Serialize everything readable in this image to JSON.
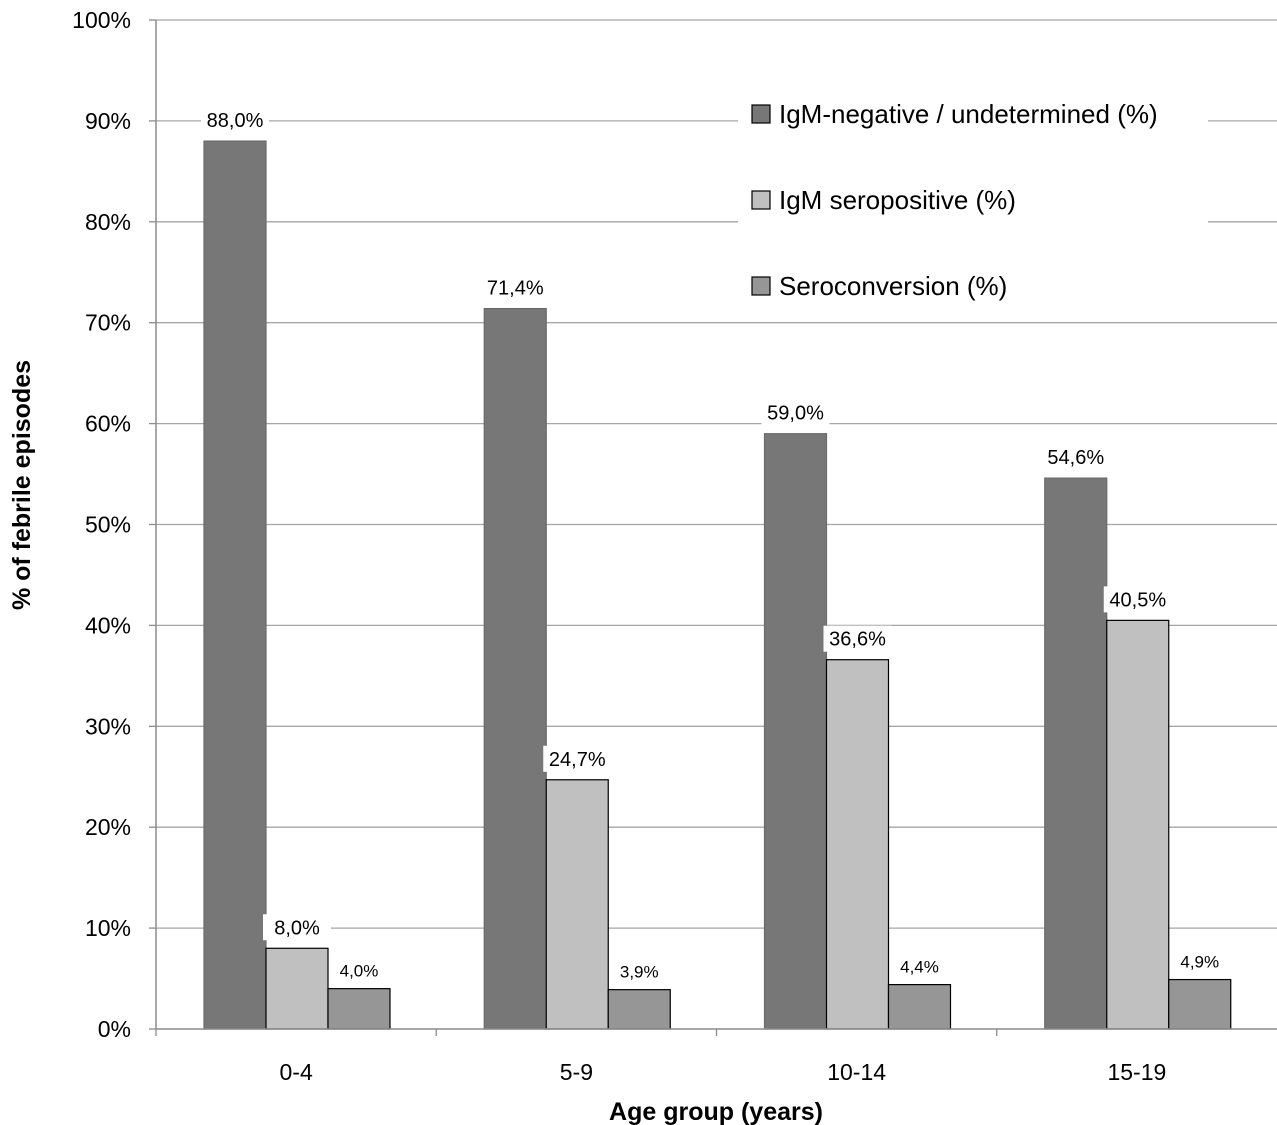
{
  "chart_data": {
    "type": "bar",
    "categories": [
      "0-4",
      "5-9",
      "10-14",
      "15-19"
    ],
    "series": [
      {
        "name": "IgM-negative / undetermined (%)",
        "values": [
          88.0,
          71.4,
          59.0,
          54.6
        ],
        "labels": [
          "88,0%",
          "71,4%",
          "59,0%",
          "54,6%"
        ],
        "color": "#777777"
      },
      {
        "name": "IgM seropositive (%)",
        "values": [
          8.0,
          24.7,
          36.6,
          40.5
        ],
        "labels": [
          "8,0%",
          "24,7%",
          "36,6%",
          "40,5%"
        ],
        "color": "#c0c0c0"
      },
      {
        "name": "Seroconversion (%)",
        "values": [
          4.0,
          3.9,
          4.4,
          4.9
        ],
        "labels": [
          "4,0%",
          "3,9%",
          "4,4%",
          "4,9%"
        ],
        "color": "#969696"
      }
    ],
    "yticks": [
      0,
      10,
      20,
      30,
      40,
      50,
      60,
      70,
      80,
      90,
      100
    ],
    "ytick_labels": [
      "0%",
      "10%",
      "20%",
      "30%",
      "40%",
      "50%",
      "60%",
      "70%",
      "80%",
      "90%",
      "100%"
    ],
    "ylim": [
      0,
      100
    ],
    "xlabel": "Age group (years)",
    "ylabel": "% of febrile episodes",
    "grid": true,
    "legend": "top-right"
  }
}
